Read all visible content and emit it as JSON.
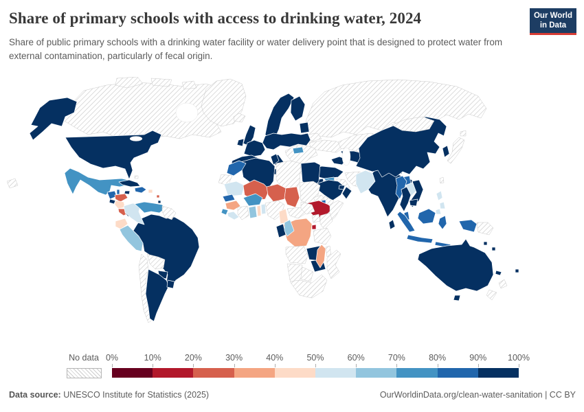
{
  "header": {
    "title": "Share of primary schools with access to drinking water, 2024",
    "subtitle": "Share of public primary schools with a drinking water facility or water delivery point that is designed to protect water from external contamination, particularly of fecal origin.",
    "logo": {
      "line1": "Our World",
      "line2": "in Data",
      "bg_color": "#1d3d63",
      "accent_color": "#d73c34"
    }
  },
  "legend": {
    "no_data_label": "No data",
    "tick_labels": [
      "0%",
      "10%",
      "20%",
      "30%",
      "40%",
      "50%",
      "60%",
      "70%",
      "80%",
      "90%",
      "100%"
    ],
    "bucket_labels": [
      "0-10",
      "10-20",
      "20-30",
      "30-40",
      "40-50",
      "50-60",
      "60-70",
      "70-80",
      "80-90",
      "90-100"
    ],
    "bucket_colors": [
      "#67001f",
      "#b2182b",
      "#d6604d",
      "#f4a582",
      "#fddbc7",
      "#d1e5f0",
      "#92c5de",
      "#4393c3",
      "#2166ac",
      "#053061"
    ]
  },
  "footer": {
    "source_label": "Data source:",
    "source_text": " UNESCO Institute for Statistics (2025)",
    "attribution": "OurWorldinData.org/clean-water-sanitation | CC BY"
  },
  "chart_data": {
    "type": "choropleth-map",
    "title": "Share of primary schools with access to drinking water, 2024",
    "unit": "% of public primary schools",
    "year": "2024",
    "no_data_pattern": "diagonal-hatch",
    "regions": {
      "united-states": "90-100",
      "canada": "no-data",
      "greenland": "no-data",
      "mexico": "70-80",
      "guatemala": "80-90",
      "belize": "80-90",
      "honduras": "20-30",
      "el-salvador": "90-100",
      "nicaragua": "40-50",
      "costa-rica": "20-30",
      "panama": "90-100",
      "cuba": "90-100",
      "jamaica": "90-100",
      "hispaniola": "80-90",
      "puerto-rico": "40-50",
      "bahamas": "no-data",
      "lesser-antilles-1": "20-30",
      "lesser-antilles-2": "90-100",
      "colombia": "50-60",
      "venezuela": "70-80",
      "guyana-suriname": "no-data",
      "ecuador": "40-50",
      "peru": "60-70",
      "brazil": "90-100",
      "bolivia": "no-data",
      "chile": "no-data",
      "paraguay": "90-100",
      "argentina": "90-100",
      "uruguay": "90-100",
      "iceland": "no-data",
      "united-kingdom": "90-100",
      "ireland": "90-100",
      "scandinavia": "90-100",
      "finland": "90-100",
      "denmark": "90-100",
      "baltic-states": "90-100",
      "iberia": "90-100",
      "france": "90-100",
      "central-europe": "90-100",
      "italy": "90-100",
      "hungary": "70-80",
      "southeast-europe": "no-data",
      "greece": "no-data",
      "albania": "70-80",
      "ukraine": "no-data",
      "belarus": "no-data",
      "russia": "no-data",
      "russia-far-east": "no-data",
      "kazakhstan": "no-data",
      "central-asia": "90-100",
      "kyrgyzstan-tajikistan": "90-100",
      "caucasus": "90-100",
      "turkey": "90-100",
      "syria": "70-80",
      "jordan-israel": "90-100",
      "iraq": "no-data",
      "iran": "no-data",
      "afghanistan": "no-data",
      "pakistan": "50-60",
      "saudi-arabia": "90-100",
      "yemen": "no-data",
      "oman": "90-100",
      "uae": "90-100",
      "india": "90-100",
      "nepal": "30-40",
      "bhutan": "90-100",
      "bangladesh": "80-90",
      "sri-lanka": "90-100",
      "china": "90-100",
      "mongolia": "no-data",
      "japan": "no-data",
      "south-korea": "90-100",
      "taiwan": "no-data",
      "myanmar": "80-90",
      "laos": "50-60",
      "thailand": "90-100",
      "vietnam": "90-100",
      "cambodia": "90-100",
      "philippines": "50-60",
      "malaysia": "80-90",
      "indonesia": "80-90",
      "papua-new-guinea": "no-data",
      "australia": "90-100",
      "new-zealand": "no-data",
      "fiji": "90-100",
      "new-caledonia": "90-100",
      "solomon-islands": "90-100",
      "vanuatu": "90-100",
      "morocco": "80-90",
      "western-sahara": "no-data",
      "algeria": "90-100",
      "tunisia": "90-100",
      "libya": "no-data",
      "egypt": "90-100",
      "mauritania": "50-60",
      "mali": "20-30",
      "niger": "20-30",
      "chad": "20-30",
      "sudan": "no-data",
      "eritrea": "no-data",
      "djibouti": "80-90",
      "ethiopia": "10-20",
      "somalia": "no-data",
      "senegal": "80-90",
      "guinea": "30-40",
      "sierra-leone": "70-80",
      "liberia": "50-60",
      "cote-divoire": "no-data",
      "ghana": "60-70",
      "togo": "40-50",
      "benin": "50-60",
      "burkina-faso": "70-80",
      "nigeria": "no-data",
      "cameroon": "40-50",
      "central-african-republic": "no-data",
      "south-sudan": "no-data",
      "uganda": "no-data",
      "kenya": "no-data",
      "rwanda-burundi": "10-20",
      "dr-congo": "30-40",
      "gabon": "90-100",
      "congo": "60-70",
      "tanzania": "no-data",
      "angola": "no-data",
      "zambia": "90-100",
      "malawi": "no-data",
      "mozambique": "no-data",
      "zimbabwe": "90-100",
      "botswana": "no-data",
      "namibia": "no-data",
      "south-africa": "no-data",
      "madagascar": "30-40"
    }
  }
}
